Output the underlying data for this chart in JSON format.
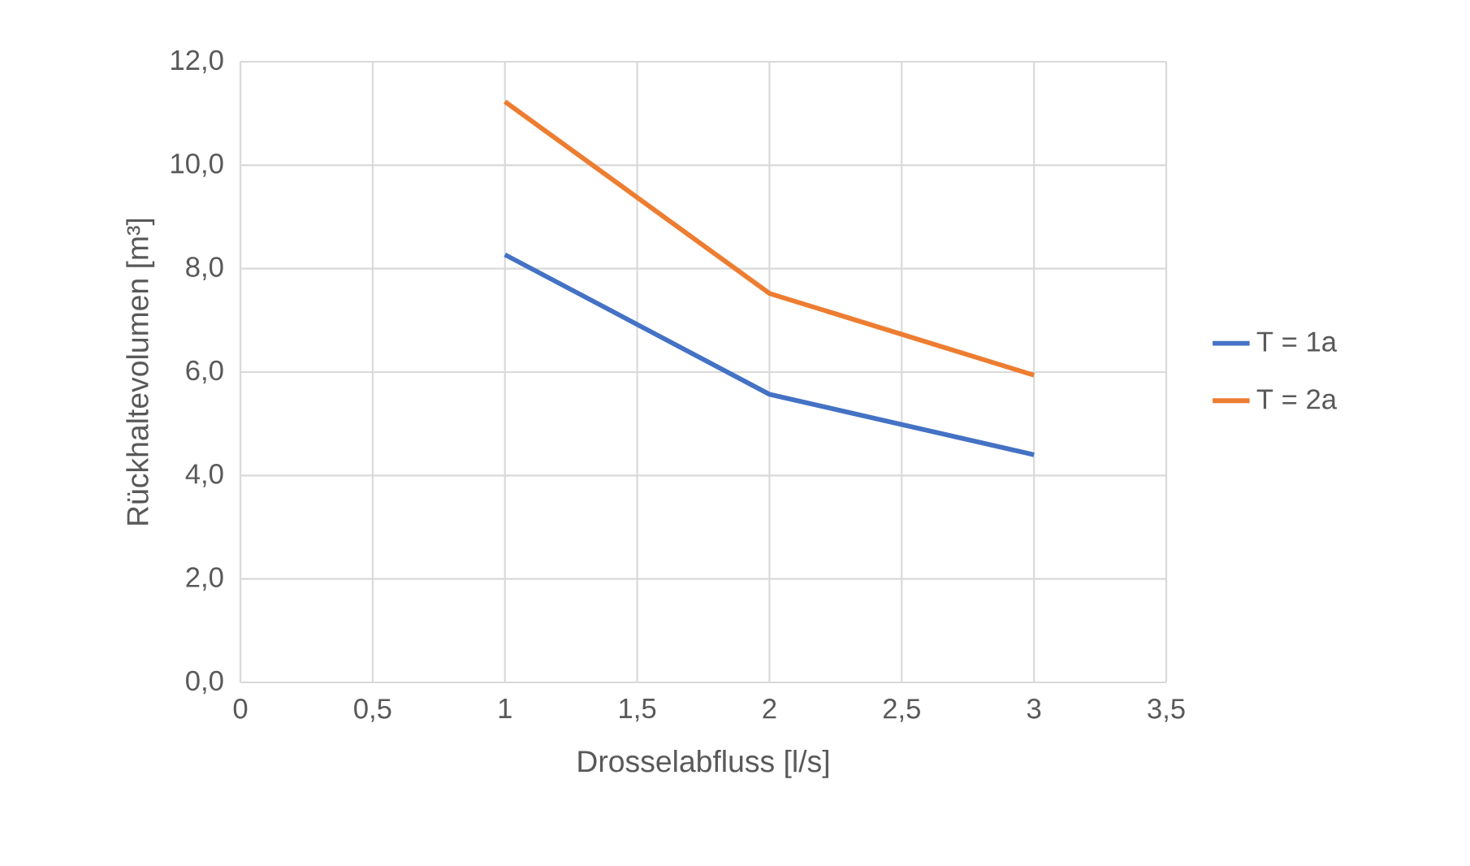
{
  "chart_data": {
    "type": "line",
    "xlabel": "Drosselabfluss [l/s]",
    "ylabel": "Rückhaltevolumen [m³]",
    "x": [
      1,
      2,
      3
    ],
    "series": [
      {
        "name": "T = 1a",
        "color": "#4472c4",
        "values": [
          8.27,
          5.57,
          4.4
        ]
      },
      {
        "name": "T = 2a",
        "color": "#ed7d31",
        "values": [
          11.23,
          7.52,
          5.94
        ]
      }
    ],
    "xlim": [
      0,
      3.5
    ],
    "ylim": [
      0,
      12
    ],
    "xticks": [
      0,
      {
        "value": 0.5,
        "label": "0,5"
      },
      1,
      {
        "value": 1.5,
        "label": "1,5"
      },
      2,
      {
        "value": 2.5,
        "label": "2,5"
      },
      3,
      {
        "value": 3.5,
        "label": "3,5"
      }
    ],
    "yticks": [
      {
        "value": 0,
        "label": "0,0"
      },
      {
        "value": 2,
        "label": "2,0"
      },
      {
        "value": 4,
        "label": "4,0"
      },
      {
        "value": 6,
        "label": "6,0"
      },
      {
        "value": 8,
        "label": "8,0"
      },
      {
        "value": 10,
        "label": "10,0"
      },
      {
        "value": 12,
        "label": "12,0"
      }
    ],
    "grid": true,
    "legend": "right",
    "marker": "none",
    "line_style": "solid"
  }
}
